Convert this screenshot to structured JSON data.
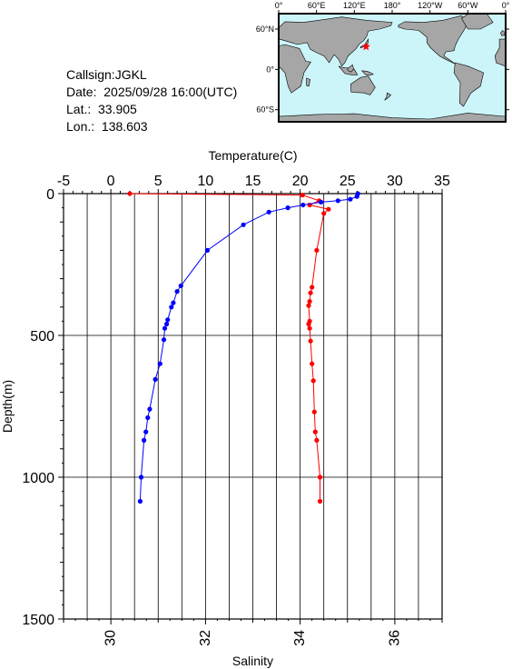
{
  "info": {
    "callsign": "Callsign:JGKL",
    "date": "Date:  2025/09/28 16:00(UTC)",
    "lat": "Lat.:  33.905",
    "lon": "Lon.:  138.603"
  },
  "map": {
    "lon_labels": [
      "0°",
      "60°E",
      "120°E",
      "180°",
      "120°W",
      "60°W",
      "0°"
    ],
    "lat_labels": [
      "60°N",
      "0°",
      "60°S"
    ],
    "station": {
      "lat": 33.905,
      "lon": 138.603
    },
    "colors": {
      "ocean": "#ccf5fa",
      "land": "#a6a6a6",
      "station": "#ff0000"
    }
  },
  "chart_data": {
    "type": "line",
    "ylabel": "Depth(m)",
    "y_ticks": [
      "0",
      "500",
      "1000",
      "1500"
    ],
    "ylim": [
      0,
      1500
    ],
    "y_reversed": true,
    "grid": true,
    "series": [
      {
        "axis": "top",
        "xlabel": "Temperature(C)",
        "xlim": [
          -5,
          35
        ],
        "x_ticks": [
          "-5",
          "0",
          "5",
          "10",
          "15",
          "20",
          "25",
          "30",
          "35"
        ],
        "color": "#0000ff",
        "points": [
          [
            26.1,
            0
          ],
          [
            26.0,
            10
          ],
          [
            25.3,
            20
          ],
          [
            24.0,
            25
          ],
          [
            22.2,
            30
          ],
          [
            20.3,
            40
          ],
          [
            18.7,
            50
          ],
          [
            16.7,
            65
          ],
          [
            14.0,
            110
          ],
          [
            10.2,
            200
          ],
          [
            7.4,
            325
          ],
          [
            7.0,
            345
          ],
          [
            6.6,
            385
          ],
          [
            6.4,
            400
          ],
          [
            6.0,
            445
          ],
          [
            5.9,
            460
          ],
          [
            5.7,
            475
          ],
          [
            5.6,
            515
          ],
          [
            5.2,
            600
          ],
          [
            4.7,
            655
          ],
          [
            4.1,
            760
          ],
          [
            3.9,
            790
          ],
          [
            3.7,
            840
          ],
          [
            3.5,
            870
          ],
          [
            3.2,
            1000
          ],
          [
            3.1,
            1085
          ]
        ]
      },
      {
        "axis": "bottom",
        "xlabel": "Salinity",
        "xlim": [
          29,
          37
        ],
        "x_ticks": [
          "30",
          "32",
          "34",
          "36"
        ],
        "color": "#ff0000",
        "points": [
          [
            30.4,
            0
          ],
          [
            34.05,
            5
          ],
          [
            34.4,
            25
          ],
          [
            34.2,
            40
          ],
          [
            34.6,
            55
          ],
          [
            34.5,
            70
          ],
          [
            34.35,
            200
          ],
          [
            34.25,
            330
          ],
          [
            34.22,
            350
          ],
          [
            34.2,
            380
          ],
          [
            34.18,
            395
          ],
          [
            34.2,
            450
          ],
          [
            34.18,
            460
          ],
          [
            34.2,
            475
          ],
          [
            34.22,
            520
          ],
          [
            34.25,
            600
          ],
          [
            34.28,
            660
          ],
          [
            34.3,
            770
          ],
          [
            34.32,
            840
          ],
          [
            34.35,
            870
          ],
          [
            34.42,
            1000
          ],
          [
            34.42,
            1085
          ]
        ]
      }
    ]
  }
}
